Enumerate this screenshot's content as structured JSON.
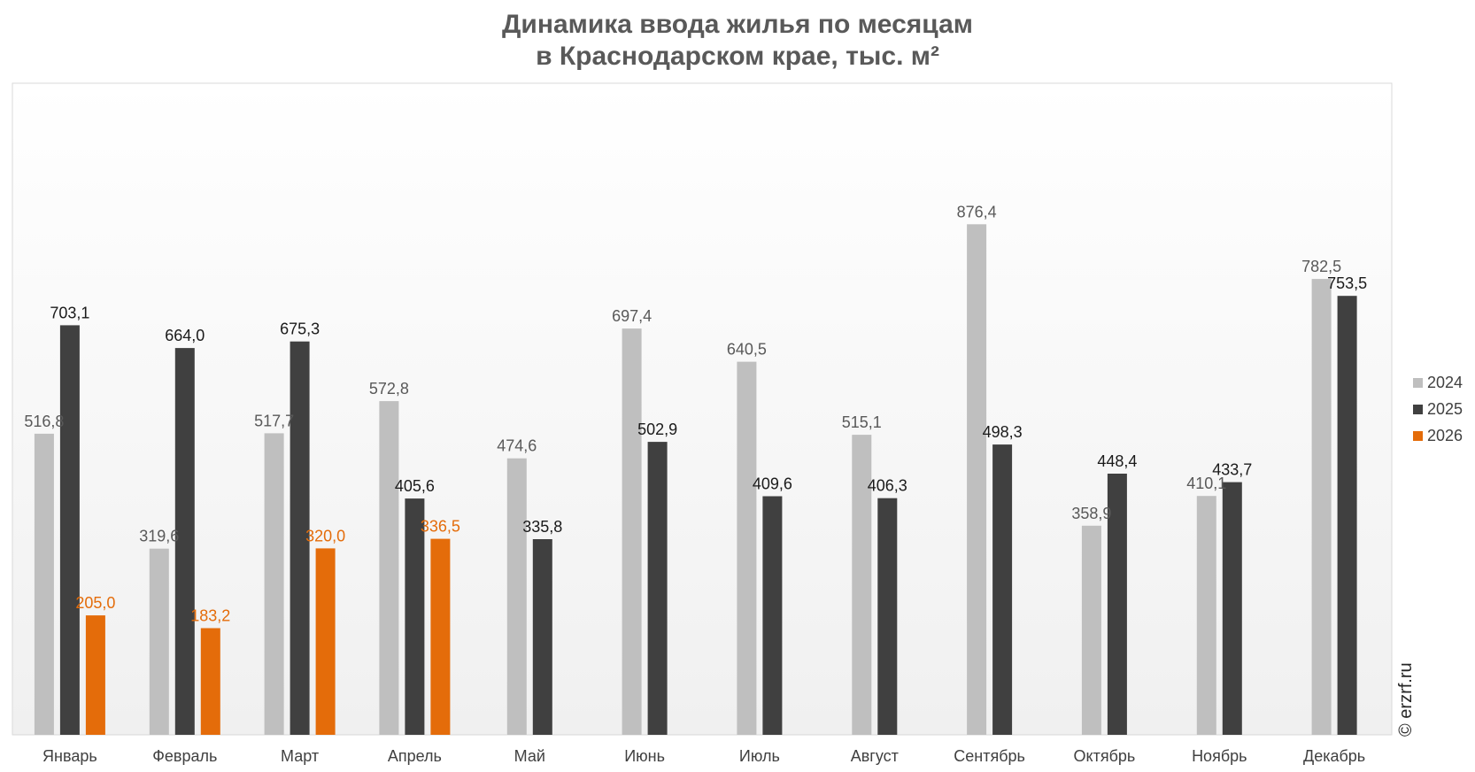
{
  "chart_data": {
    "type": "bar",
    "title_lines": [
      "Динамика ввода жилья по месяцам",
      "в Краснодарском крае, тыс. м²"
    ],
    "categories": [
      "Январь",
      "Февраль",
      "Март",
      "Апрель",
      "Май",
      "Июнь",
      "Июль",
      "Август",
      "Сентябрь",
      "Октябрь",
      "Ноябрь",
      "Декабрь"
    ],
    "series": [
      {
        "name": "2024",
        "color": "#bfbfbf",
        "label_color": "#595959",
        "values": [
          516.8,
          319.6,
          517.7,
          572.8,
          474.6,
          697.4,
          640.5,
          515.1,
          876.4,
          358.9,
          410.1,
          782.5
        ],
        "labels": [
          "516,8",
          "319,6",
          "517,7",
          "572,8",
          "474,6",
          "697,4",
          "640,5",
          "515,1",
          "876,4",
          "358,9",
          "410,1",
          "782,5"
        ]
      },
      {
        "name": "2025",
        "color": "#404040",
        "label_color": "#1a1a1a",
        "values": [
          703.1,
          664.0,
          675.3,
          405.6,
          335.8,
          502.9,
          409.6,
          406.3,
          498.3,
          448.4,
          433.7,
          753.5
        ],
        "labels": [
          "703,1",
          "664,0",
          "675,3",
          "405,6",
          "335,8",
          "502,9",
          "409,6",
          "406,3",
          "498,3",
          "448,4",
          "433,7",
          "753,5"
        ]
      },
      {
        "name": "2026",
        "color": "#e46c0a",
        "label_color": "#e46c0a",
        "values": [
          205.0,
          183.2,
          320.0,
          336.5,
          null,
          null,
          null,
          null,
          null,
          null,
          null,
          null
        ],
        "labels": [
          "205,0",
          "183,2",
          "320,0",
          "336,5",
          "",
          "",
          "",
          "",
          "",
          "",
          "",
          ""
        ]
      }
    ],
    "ylim": [
      0,
      1000
    ],
    "grid": false,
    "legend_position": "right",
    "xlabel": "",
    "ylabel": ""
  },
  "watermark": "© erzrf.ru"
}
